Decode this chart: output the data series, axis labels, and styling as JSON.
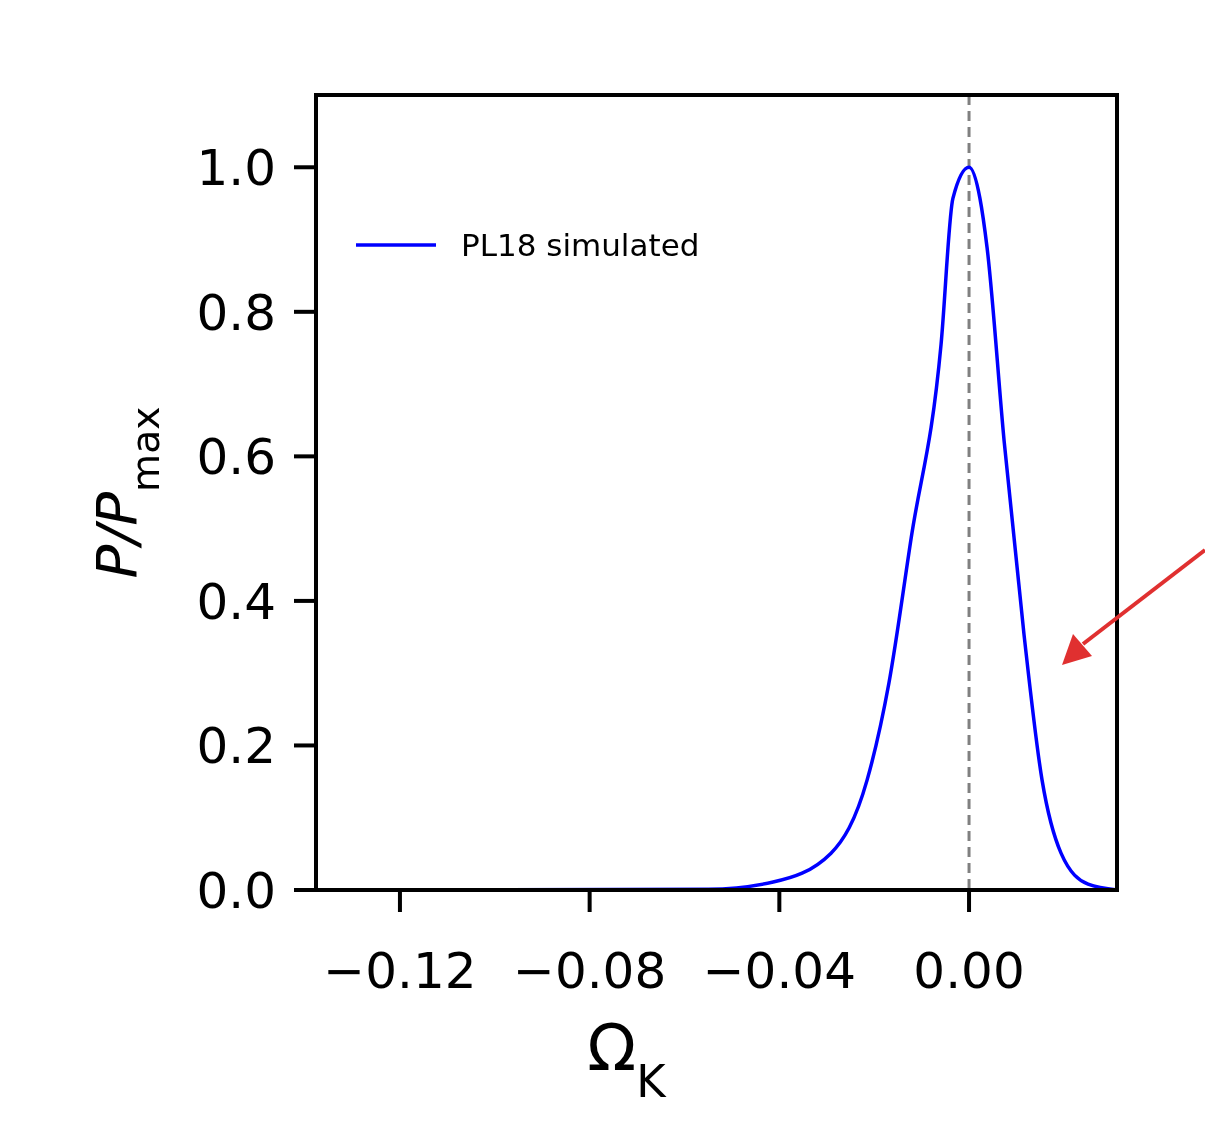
{
  "chart_data": {
    "type": "line",
    "xlabel": "Ω$_{K}$",
    "ylabel": "P/P$_{max}$",
    "xlim": [
      -0.1377,
      0.0312
    ],
    "ylim": [
      0,
      1.1
    ],
    "xticks": [
      {
        "value": -0.12,
        "label": "−0.12"
      },
      {
        "value": -0.08,
        "label": "−0.08"
      },
      {
        "value": -0.04,
        "label": "−0.04"
      },
      {
        "value": 0,
        "label": "0.00"
      }
    ],
    "yticks": [
      {
        "value": 0,
        "label": "0.0"
      },
      {
        "value": 0.2,
        "label": "0.2"
      },
      {
        "value": 0.4,
        "label": "0.4"
      },
      {
        "value": 0.6,
        "label": "0.6"
      },
      {
        "value": 0.8,
        "label": "0.8"
      },
      {
        "value": 1,
        "label": "1.0"
      }
    ],
    "series": [
      {
        "name": "PL18 simulated",
        "color": "#0000ff",
        "x": [
          -0.1377,
          -0.055,
          -0.0413,
          -0.0291,
          -0.0215,
          -0.0169,
          -0.0122,
          -0.0059,
          -0.0034,
          0,
          0.0023,
          0.0038,
          0.0074,
          0.0116,
          0.0154,
          0.0194,
          0.0251,
          0.0312
        ],
        "values": [
          0,
          0.001,
          0.011,
          0.051,
          0.152,
          0.286,
          0.487,
          0.755,
          0.957,
          1,
          0.957,
          0.889,
          0.621,
          0.353,
          0.152,
          0.051,
          0.008,
          0
        ]
      }
    ],
    "ref_lines": [
      {
        "axis": "x",
        "value": 0,
        "color": "#808080",
        "line_style": "dashed"
      }
    ],
    "legend": "top left",
    "grid": false,
    "line_style": "solid",
    "marker": "none"
  }
}
